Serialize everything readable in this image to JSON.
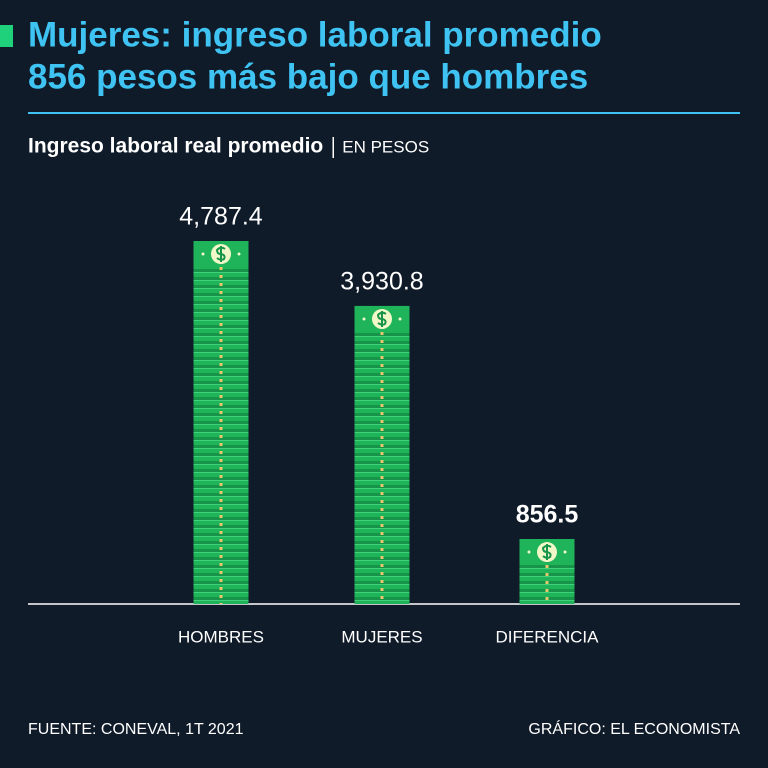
{
  "chart_data": {
    "type": "bar",
    "title": [
      "Mujeres: ingreso laboral promedio",
      "856 pesos más bajo que hombres"
    ],
    "subtitle": "Ingreso laboral real promedio",
    "unit": "EN PESOS",
    "categories": [
      "HOMBRES",
      "MUJERES",
      "DIFERENCIA"
    ],
    "values": [
      4787.4,
      3930.8,
      856.5
    ],
    "value_labels": [
      "4,787.4",
      "3,930.8",
      "856.5"
    ],
    "color": "#1fb35a",
    "source": "FUENTE: CONEVAL, 1T 2021",
    "credit": "GRÁFICO: EL ECONOMISTA"
  }
}
